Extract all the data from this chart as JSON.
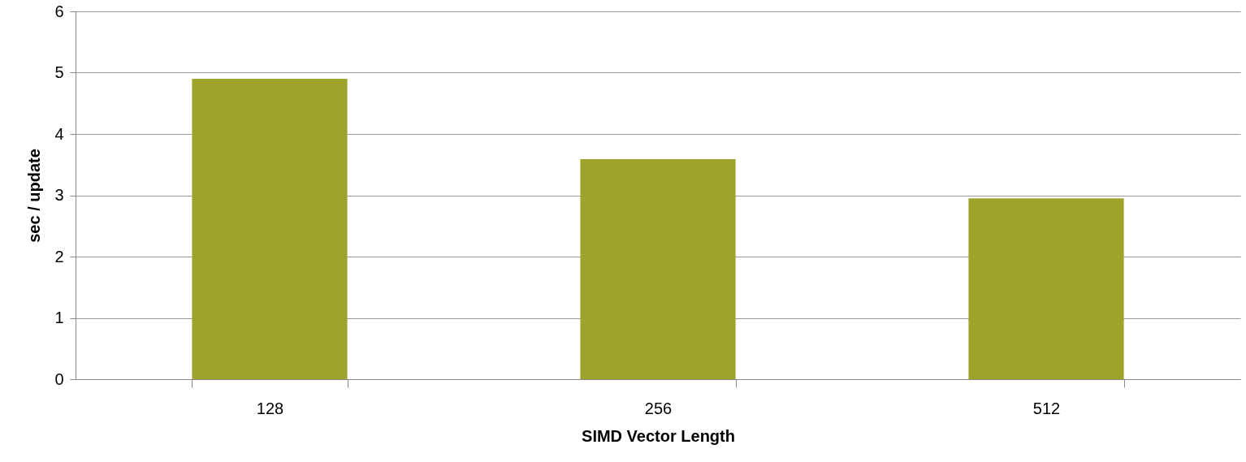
{
  "chart_data": {
    "type": "bar",
    "xlabel": "SIMD Vector Length",
    "ylabel": "sec / update",
    "categories": [
      "128",
      "256",
      "512"
    ],
    "values": [
      4.9,
      3.59,
      2.95
    ],
    "color": "#9fa32b",
    "ylim": [
      0,
      6
    ],
    "yticks": [
      0,
      1,
      2,
      3,
      4,
      5,
      6
    ],
    "grid": "y"
  }
}
